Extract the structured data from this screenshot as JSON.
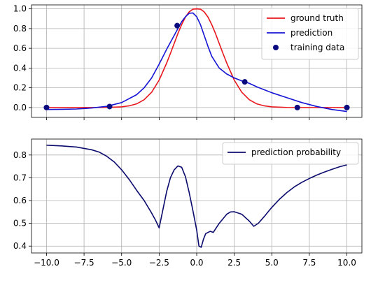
{
  "chart_data": [
    {
      "type": "line",
      "xlim": [
        -11,
        11
      ],
      "ylim": [
        -0.1,
        1.04
      ],
      "grid": true,
      "legend_position": "top-right",
      "xticks": [
        -10,
        -7.5,
        -5,
        -2.5,
        0,
        2.5,
        5,
        7.5,
        10
      ],
      "yticks": [
        0.0,
        0.2,
        0.4,
        0.6,
        0.8,
        1.0
      ],
      "ytick_labels": [
        "0.0",
        "0.2",
        "0.4",
        "0.6",
        "0.8",
        "1.0"
      ],
      "series": [
        {
          "name": "ground truth",
          "kind": "line",
          "color": "#e8161c",
          "x": [
            -10,
            -9,
            -8,
            -7,
            -6,
            -5,
            -4.5,
            -4,
            -3.5,
            -3,
            -2.5,
            -2,
            -1.75,
            -1.5,
            -1.25,
            -1,
            -0.75,
            -0.5,
            -0.25,
            0,
            0.25,
            0.5,
            0.75,
            1,
            1.25,
            1.5,
            1.75,
            2,
            2.5,
            3,
            3.5,
            4,
            4.5,
            5,
            6,
            7,
            8,
            9,
            10
          ],
          "y": [
            0,
            0,
            0,
            0,
            0.001,
            0.007,
            0.017,
            0.037,
            0.079,
            0.155,
            0.278,
            0.451,
            0.548,
            0.649,
            0.75,
            0.841,
            0.917,
            0.969,
            0.997,
            1.0,
            0.997,
            0.969,
            0.917,
            0.841,
            0.75,
            0.649,
            0.548,
            0.451,
            0.278,
            0.155,
            0.079,
            0.037,
            0.017,
            0.007,
            0.001,
            0,
            0,
            0,
            0
          ]
        },
        {
          "name": "prediction",
          "kind": "line",
          "color": "#1515d6",
          "x": [
            -10,
            -9,
            -8,
            -7,
            -6,
            -5,
            -4,
            -3.5,
            -3,
            -2.5,
            -2,
            -1.5,
            -1.25,
            -1,
            -0.75,
            -0.5,
            -0.25,
            0,
            0.25,
            0.5,
            0.75,
            1,
            1.5,
            2,
            2.5,
            3,
            3.5,
            4,
            5,
            6,
            7,
            8,
            9,
            10
          ],
          "y": [
            -0.02,
            -0.018,
            -0.015,
            -0.005,
            0.012,
            0.05,
            0.13,
            0.2,
            0.3,
            0.44,
            0.59,
            0.73,
            0.8,
            0.87,
            0.92,
            0.955,
            0.958,
            0.92,
            0.84,
            0.73,
            0.62,
            0.52,
            0.4,
            0.34,
            0.3,
            0.27,
            0.245,
            0.21,
            0.15,
            0.1,
            0.05,
            0.01,
            -0.02,
            -0.04
          ]
        },
        {
          "name": "training data",
          "kind": "scatter",
          "color": "#0b0b80",
          "x": [
            -10,
            -5.8,
            -1.3,
            3.2,
            6.7,
            10
          ],
          "y": [
            0.0,
            0.01,
            0.83,
            0.26,
            0.0,
            0.0
          ]
        }
      ]
    },
    {
      "type": "line",
      "xlim": [
        -11,
        11
      ],
      "ylim": [
        0.37,
        0.87
      ],
      "grid": true,
      "legend_position": "top-right",
      "xticks": [
        -10,
        -7.5,
        -5,
        -2.5,
        0,
        2.5,
        5,
        7.5,
        10
      ],
      "xtick_labels": [
        "−10.0",
        "−7.5",
        "−5.0",
        "−2.5",
        "0.0",
        "2.5",
        "5.0",
        "7.5",
        "10.0"
      ],
      "yticks": [
        0.4,
        0.5,
        0.6,
        0.7,
        0.8
      ],
      "ytick_labels": [
        "0.4",
        "0.5",
        "0.6",
        "0.7",
        "0.8"
      ],
      "series": [
        {
          "name": "prediction probability",
          "kind": "line",
          "color": "#0b0b6e",
          "x": [
            -10,
            -9,
            -8,
            -7,
            -6.5,
            -6,
            -5.5,
            -5,
            -4.5,
            -4,
            -3.5,
            -3,
            -2.75,
            -2.5,
            -2.25,
            -2,
            -1.75,
            -1.5,
            -1.25,
            -1,
            -0.75,
            -0.5,
            -0.25,
            0,
            0.15,
            0.3,
            0.45,
            0.6,
            0.75,
            0.9,
            1.1,
            1.5,
            2,
            2.25,
            2.5,
            3,
            3.5,
            3.8,
            4.1,
            4.5,
            5,
            5.5,
            6,
            6.5,
            7,
            7.5,
            8,
            8.5,
            9,
            9.5,
            10
          ],
          "y": [
            0.843,
            0.84,
            0.835,
            0.823,
            0.813,
            0.795,
            0.77,
            0.735,
            0.693,
            0.645,
            0.6,
            0.545,
            0.515,
            0.48,
            0.56,
            0.64,
            0.7,
            0.735,
            0.752,
            0.746,
            0.705,
            0.635,
            0.555,
            0.47,
            0.4,
            0.395,
            0.43,
            0.455,
            0.46,
            0.465,
            0.46,
            0.5,
            0.54,
            0.55,
            0.551,
            0.54,
            0.51,
            0.487,
            0.5,
            0.53,
            0.57,
            0.605,
            0.635,
            0.66,
            0.68,
            0.697,
            0.712,
            0.725,
            0.737,
            0.748,
            0.757
          ]
        }
      ]
    }
  ]
}
